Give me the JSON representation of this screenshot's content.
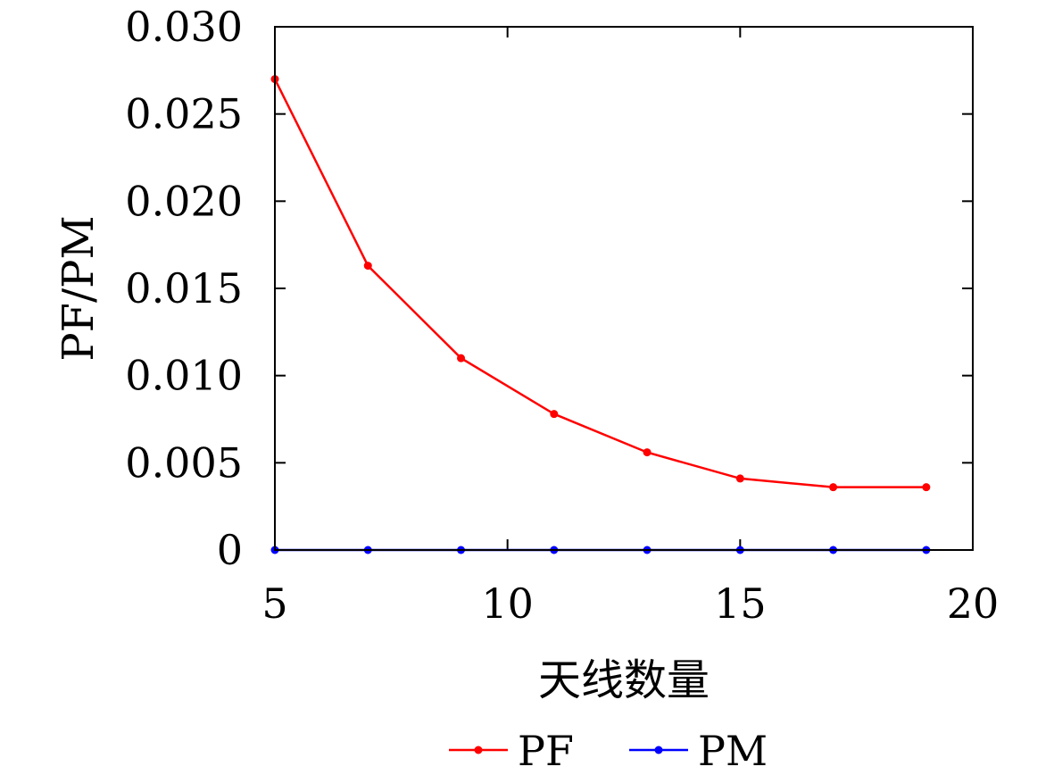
{
  "chart_data": {
    "type": "line",
    "title": "",
    "xlabel": "天线数量",
    "ylabel": "PF/PM",
    "xlim": [
      5,
      20
    ],
    "ylim": [
      0,
      0.03
    ],
    "x_ticks": [
      5,
      10,
      15,
      20
    ],
    "x_tick_labels": [
      "5",
      "10",
      "15",
      "20"
    ],
    "y_ticks": [
      0,
      0.005,
      0.01,
      0.015,
      0.02,
      0.025,
      0.03
    ],
    "y_tick_labels": [
      "0",
      "0.005",
      "0.010",
      "0.015",
      "0.020",
      "0.025",
      "0.030"
    ],
    "grid": false,
    "legend_position": "bottom-center",
    "x": [
      5,
      7,
      9,
      11,
      13,
      15,
      17,
      19
    ],
    "series": [
      {
        "name": "PF",
        "color": "#ff0000",
        "values": [
          0.027,
          0.0163,
          0.011,
          0.0078,
          0.0056,
          0.0041,
          0.0036,
          0.0036
        ]
      },
      {
        "name": "PM",
        "color": "#0000ff",
        "values": [
          0,
          0,
          0,
          0,
          0,
          0,
          0,
          0
        ]
      }
    ]
  }
}
